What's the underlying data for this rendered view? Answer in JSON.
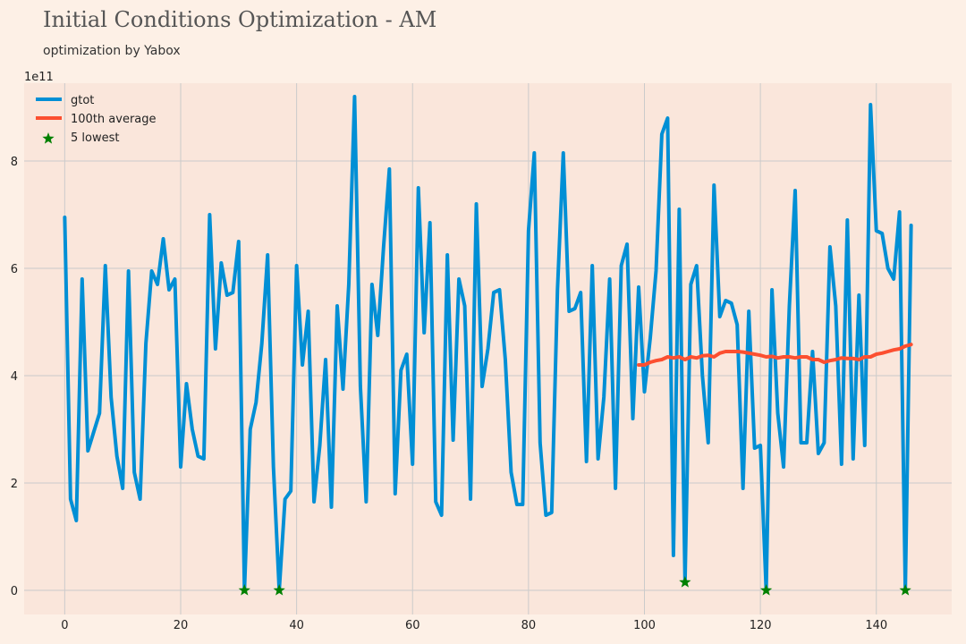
{
  "title": "Initial Conditions Optimization - AM",
  "subtitle": "optimization by Yabox",
  "chart_data": {
    "type": "line",
    "xlim": [
      -7,
      153
    ],
    "ylim": [
      -0.45,
      9.45
    ],
    "y_scale_label": "1e11",
    "xticks": [
      0,
      20,
      40,
      60,
      80,
      100,
      120,
      140
    ],
    "yticks": [
      0,
      2,
      4,
      6,
      8
    ],
    "grid": true,
    "legend_position": "top-left",
    "series": [
      {
        "name": "gtot",
        "color": "#008fd5",
        "x_start": 0,
        "values": [
          6.95,
          1.7,
          1.3,
          5.8,
          2.6,
          2.95,
          3.3,
          6.05,
          3.6,
          2.5,
          1.9,
          5.95,
          2.2,
          1.7,
          4.6,
          5.95,
          5.7,
          6.55,
          5.6,
          5.8,
          2.3,
          3.85,
          3.0,
          2.5,
          2.45,
          7.0,
          4.5,
          6.1,
          5.5,
          5.55,
          6.5,
          0.0,
          3.0,
          3.5,
          4.6,
          6.25,
          2.3,
          0.0,
          1.7,
          1.85,
          6.05,
          4.2,
          5.2,
          1.65,
          2.7,
          4.3,
          1.55,
          5.3,
          3.75,
          5.7,
          9.2,
          3.8,
          1.65,
          5.7,
          4.75,
          6.4,
          7.85,
          1.8,
          4.1,
          4.4,
          2.35,
          7.5,
          4.8,
          6.85,
          1.65,
          1.4,
          6.25,
          2.8,
          5.8,
          5.3,
          1.7,
          7.2,
          3.8,
          4.5,
          5.55,
          5.6,
          4.3,
          2.2,
          1.6,
          1.6,
          6.7,
          8.15,
          2.75,
          1.4,
          1.45,
          5.6,
          8.15,
          5.2,
          5.25,
          5.55,
          2.4,
          6.05,
          2.45,
          3.6,
          5.8,
          1.9,
          6.05,
          6.45,
          3.2,
          5.65,
          3.7,
          4.7,
          5.95,
          8.5,
          8.8,
          0.65,
          7.1,
          0.15,
          5.7,
          6.05,
          4.0,
          2.75,
          7.55,
          5.1,
          5.4,
          5.35,
          4.95,
          1.9,
          5.2,
          2.65,
          2.7,
          0.0,
          5.6,
          3.3,
          2.3,
          5.3,
          7.45,
          2.75,
          2.75,
          4.45,
          2.55,
          2.75,
          6.4,
          5.3,
          2.35,
          6.9,
          2.45,
          5.5,
          2.7,
          9.05,
          6.7,
          6.65,
          6.0,
          5.8,
          7.05,
          0.0,
          6.8
        ]
      },
      {
        "name": "100th average",
        "color": "#fc4f30",
        "x_start": 99,
        "values": [
          4.2,
          4.2,
          4.25,
          4.28,
          4.3,
          4.35,
          4.33,
          4.35,
          4.3,
          4.35,
          4.33,
          4.37,
          4.38,
          4.35,
          4.42,
          4.45,
          4.45,
          4.45,
          4.44,
          4.42,
          4.4,
          4.38,
          4.35,
          4.36,
          4.33,
          4.35,
          4.35,
          4.33,
          4.35,
          4.35,
          4.3,
          4.3,
          4.25,
          4.28,
          4.3,
          4.33,
          4.32,
          4.32,
          4.3,
          4.35,
          4.35,
          4.4,
          4.42,
          4.45,
          4.48,
          4.5,
          4.55,
          4.58
        ]
      },
      {
        "name": "5 lowest",
        "color": "#008000",
        "marker": "star",
        "points": [
          [
            31,
            0.0
          ],
          [
            37,
            0.0
          ],
          [
            107,
            0.15
          ],
          [
            121,
            0.0
          ],
          [
            145,
            0.0
          ]
        ]
      }
    ]
  }
}
